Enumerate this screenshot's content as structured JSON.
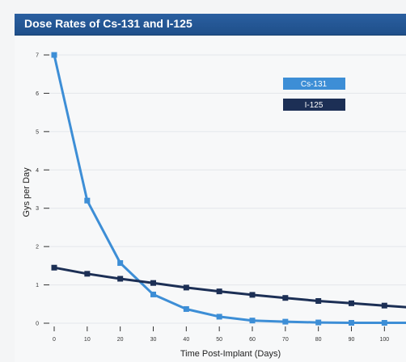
{
  "header": {
    "title": "Dose Rates of Cs-131 and I-125"
  },
  "chart_data": {
    "type": "line",
    "title": "Dose Rates of Cs-131 and I-125",
    "xlabel": "Time Post-Implant (Days)",
    "ylabel": "Gys per Day",
    "x_ticks": [
      0,
      10,
      20,
      30,
      40,
      50,
      60,
      70,
      80,
      90,
      100
    ],
    "y_ticks": [
      0,
      1,
      2,
      3,
      4,
      5,
      6,
      7
    ],
    "xlim": [
      0,
      108
    ],
    "ylim": [
      0,
      7
    ],
    "grid": true,
    "legend_position": "top-right",
    "colors": {
      "cs131": "#3d8ed6",
      "i125": "#1c2f55",
      "title_bar": "#23548f"
    },
    "series": [
      {
        "name": "Cs-131",
        "x": [
          0,
          10,
          20,
          30,
          40,
          50,
          60,
          70,
          80,
          90,
          100,
          108
        ],
        "y": [
          7.0,
          3.2,
          1.57,
          0.75,
          0.37,
          0.17,
          0.07,
          0.04,
          0.02,
          0.01,
          0.01,
          0.01
        ]
      },
      {
        "name": "I-125",
        "x": [
          0,
          10,
          20,
          30,
          40,
          50,
          60,
          70,
          80,
          90,
          100,
          108
        ],
        "y": [
          1.45,
          1.29,
          1.16,
          1.05,
          0.93,
          0.83,
          0.74,
          0.66,
          0.58,
          0.52,
          0.46,
          0.41
        ]
      }
    ]
  }
}
